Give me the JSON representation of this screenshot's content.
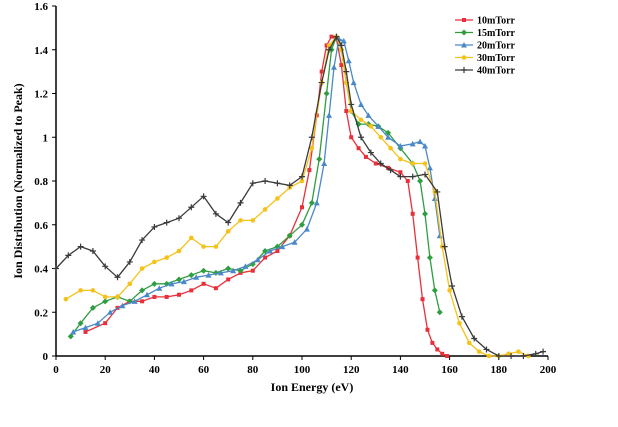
{
  "chart_data": {
    "type": "line",
    "title": "",
    "xlabel": "Ion Energy (eV)",
    "ylabel": "Ion Distribution (Normalized to Peak)",
    "xlim": [
      0,
      200
    ],
    "ylim": [
      0,
      1.6
    ],
    "xticks": [
      0,
      20,
      40,
      60,
      80,
      100,
      120,
      140,
      160,
      180,
      200
    ],
    "yticks": [
      0,
      0.2,
      0.4,
      0.6,
      0.8,
      1,
      1.2,
      1.4,
      1.6
    ],
    "xtick_labels": [
      "0",
      "20",
      "40",
      "60",
      "80",
      "100",
      "120",
      "140",
      "160",
      "180",
      "200"
    ],
    "ytick_labels": [
      "0",
      "0.2",
      "0.4",
      "0.6",
      "0.8",
      "1",
      "1.2",
      "1.4",
      "1.6"
    ],
    "grid": false,
    "legend_position": "top-right",
    "series": [
      {
        "name": "10mTorr",
        "color": "#e8303a",
        "marker": "square",
        "x": [
          12,
          20,
          25,
          30,
          35,
          40,
          45,
          50,
          55,
          60,
          65,
          70,
          75,
          80,
          85,
          90,
          95,
          100,
          103,
          106,
          108,
          110,
          112,
          114,
          116,
          118,
          120,
          123,
          126,
          130,
          135,
          140,
          143,
          145,
          147,
          149,
          151,
          153,
          155,
          157,
          159
        ],
        "y": [
          0.11,
          0.15,
          0.22,
          0.25,
          0.25,
          0.27,
          0.27,
          0.28,
          0.3,
          0.33,
          0.31,
          0.35,
          0.38,
          0.39,
          0.45,
          0.48,
          0.55,
          0.68,
          0.85,
          1.1,
          1.3,
          1.42,
          1.46,
          1.45,
          1.33,
          1.12,
          1.0,
          0.95,
          0.91,
          0.88,
          0.86,
          0.84,
          0.8,
          0.65,
          0.45,
          0.26,
          0.12,
          0.06,
          0.03,
          0.01,
          0.0
        ]
      },
      {
        "name": "15mTorr",
        "color": "#2e9e40",
        "marker": "diamond",
        "x": [
          6,
          10,
          15,
          20,
          25,
          30,
          35,
          40,
          45,
          50,
          55,
          60,
          65,
          70,
          75,
          80,
          85,
          90,
          95,
          100,
          104,
          107,
          110,
          112,
          114,
          116,
          118,
          120,
          123,
          127,
          131,
          135,
          140,
          145,
          148,
          150,
          152,
          154,
          156
        ],
        "y": [
          0.09,
          0.15,
          0.22,
          0.25,
          0.27,
          0.25,
          0.3,
          0.33,
          0.33,
          0.35,
          0.37,
          0.39,
          0.38,
          0.4,
          0.39,
          0.42,
          0.48,
          0.5,
          0.55,
          0.6,
          0.7,
          0.9,
          1.2,
          1.4,
          1.46,
          1.4,
          1.25,
          1.12,
          1.06,
          1.06,
          1.05,
          1.02,
          0.95,
          0.88,
          0.8,
          0.65,
          0.45,
          0.3,
          0.2
        ]
      },
      {
        "name": "20mTorr",
        "color": "#4a88c7",
        "marker": "triangle",
        "x": [
          7,
          12,
          17,
          22,
          27,
          32,
          37,
          42,
          47,
          52,
          57,
          62,
          67,
          72,
          77,
          82,
          87,
          92,
          97,
          102,
          106,
          109,
          111,
          113,
          115,
          117,
          119,
          121,
          124,
          127,
          131,
          135,
          140,
          145,
          148,
          150,
          152,
          154,
          156
        ],
        "y": [
          0.11,
          0.13,
          0.15,
          0.2,
          0.23,
          0.25,
          0.28,
          0.31,
          0.33,
          0.34,
          0.36,
          0.37,
          0.38,
          0.39,
          0.41,
          0.44,
          0.48,
          0.5,
          0.52,
          0.58,
          0.7,
          0.88,
          1.1,
          1.32,
          1.45,
          1.44,
          1.35,
          1.25,
          1.15,
          1.1,
          1.05,
          1.0,
          0.96,
          0.97,
          0.98,
          0.96,
          0.86,
          0.72,
          0.55
        ]
      },
      {
        "name": "30mTorr",
        "color": "#f5c21a",
        "marker": "circle",
        "x": [
          4,
          10,
          15,
          20,
          25,
          30,
          35,
          40,
          45,
          50,
          55,
          60,
          65,
          70,
          75,
          80,
          85,
          90,
          95,
          100,
          104,
          108,
          111,
          114,
          116,
          118,
          120,
          124,
          128,
          132,
          136,
          140,
          145,
          150,
          154,
          157,
          160,
          164,
          168,
          172,
          176,
          180,
          184,
          188,
          192
        ],
        "y": [
          0.26,
          0.3,
          0.3,
          0.27,
          0.27,
          0.33,
          0.4,
          0.43,
          0.45,
          0.48,
          0.54,
          0.5,
          0.5,
          0.57,
          0.62,
          0.62,
          0.67,
          0.72,
          0.77,
          0.8,
          0.95,
          1.25,
          1.42,
          1.46,
          1.4,
          1.25,
          1.12,
          1.08,
          1.05,
          1.0,
          0.95,
          0.9,
          0.88,
          0.88,
          0.75,
          0.5,
          0.3,
          0.15,
          0.06,
          0.02,
          0.0,
          0.0,
          0.01,
          0.02,
          0.0
        ]
      },
      {
        "name": "40mTorr",
        "color": "#3a3a3a",
        "marker": "cross",
        "x": [
          0,
          5,
          10,
          15,
          20,
          25,
          30,
          35,
          40,
          45,
          50,
          55,
          60,
          65,
          70,
          75,
          80,
          85,
          90,
          95,
          100,
          104,
          108,
          111,
          114,
          116,
          118,
          120,
          124,
          128,
          132,
          136,
          140,
          145,
          150,
          155,
          158,
          161,
          165,
          170,
          175,
          180,
          185,
          190,
          195,
          198
        ],
        "y": [
          0.4,
          0.46,
          0.5,
          0.48,
          0.41,
          0.36,
          0.43,
          0.53,
          0.59,
          0.61,
          0.63,
          0.68,
          0.73,
          0.65,
          0.61,
          0.7,
          0.79,
          0.8,
          0.79,
          0.78,
          0.82,
          1.0,
          1.25,
          1.4,
          1.46,
          1.42,
          1.3,
          1.15,
          1.0,
          0.93,
          0.88,
          0.85,
          0.82,
          0.82,
          0.83,
          0.75,
          0.5,
          0.32,
          0.18,
          0.08,
          0.03,
          0.0,
          0.0,
          0.0,
          0.01,
          0.02
        ]
      }
    ]
  }
}
